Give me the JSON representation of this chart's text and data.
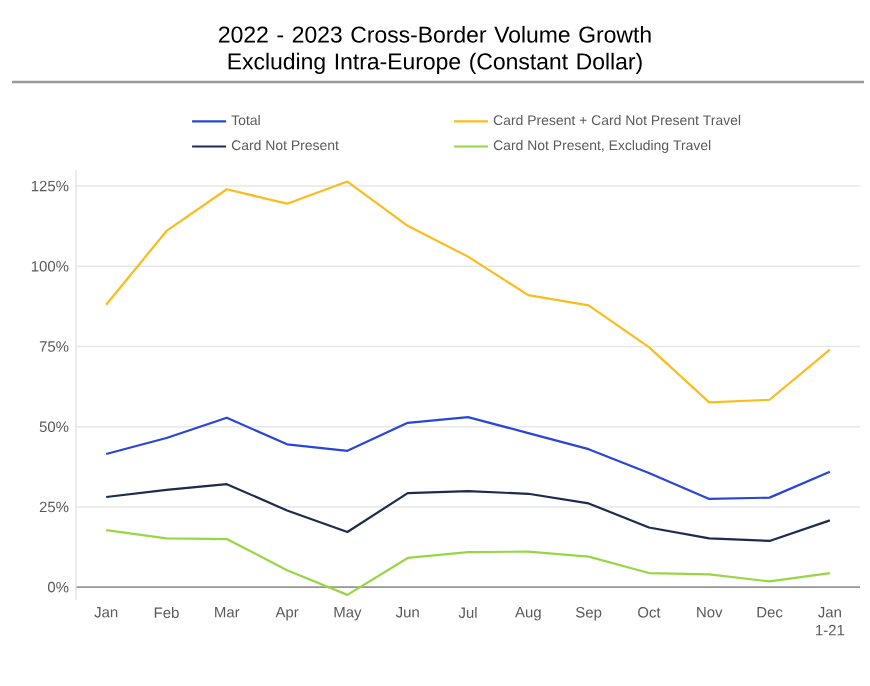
{
  "chart_data": {
    "type": "line",
    "title": "2022 - 2023 Cross-Border Volume Growth Excluding Intra-Europe (Constant Dollar)",
    "categories": [
      "Jan",
      "Feb",
      "Mar",
      "Apr",
      "May",
      "Jun",
      "Jul",
      "Aug",
      "Sep",
      "Oct",
      "Nov",
      "Dec",
      "Jan 1-21"
    ],
    "series": [
      {
        "name": "Total",
        "color": "#2946d9",
        "values": [
          41.5,
          46.5,
          52.8,
          44.5,
          42.5,
          51.2,
          53,
          48,
          43,
          35.6,
          27.5,
          27.9,
          36
        ]
      },
      {
        "name": "Card Present + Card Not Present Travel",
        "color": "#fbbc1c",
        "values": [
          88,
          111,
          124,
          119.5,
          126.4,
          112.6,
          103,
          91,
          87.8,
          74.8,
          57.6,
          58.4,
          74
        ]
      },
      {
        "name": "Card Not Present",
        "color": "#1c2b4e",
        "values": [
          28.1,
          30.3,
          32.1,
          23.9,
          17.2,
          29.3,
          29.9,
          29.1,
          26.1,
          18.6,
          15.2,
          14.4,
          20.8
        ]
      },
      {
        "name": "Card Not Present, Excluding Travel",
        "color": "#99d645",
        "values": [
          17.8,
          15.2,
          15,
          5.3,
          -2.4,
          9.1,
          10.9,
          11.1,
          9.5,
          4.4,
          4,
          1.8,
          4.4
        ]
      }
    ],
    "ylim": [
      -4,
      130
    ],
    "yticks": [
      {
        "value": 0,
        "label": "0%"
      },
      {
        "value": 25,
        "label": "25%"
      },
      {
        "value": 50,
        "label": "50%"
      },
      {
        "value": 75,
        "label": "75%"
      },
      {
        "value": 100,
        "label": "100%"
      },
      {
        "value": 125,
        "label": "125%"
      }
    ],
    "grid": "y",
    "legend": "top",
    "marker": "none",
    "line_style": "solid"
  }
}
